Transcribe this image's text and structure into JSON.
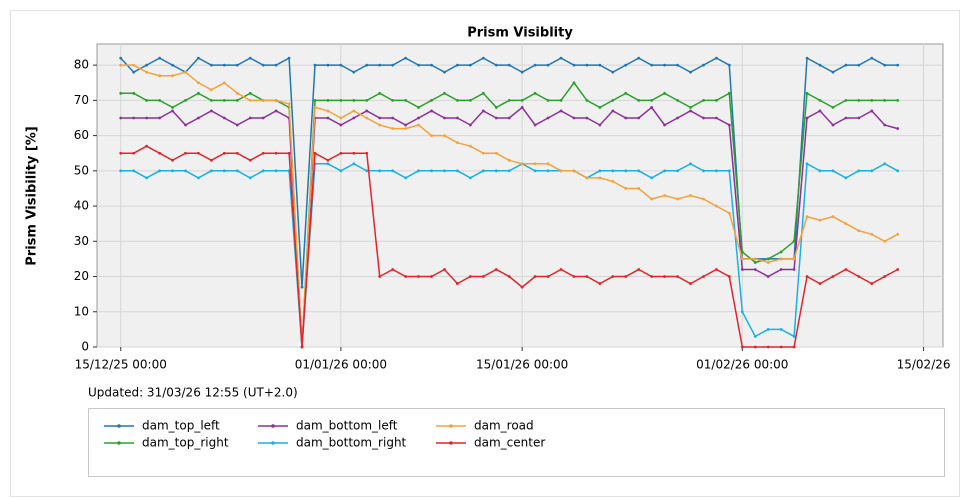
{
  "chart_data": {
    "type": "line",
    "title": "Prism Visiblity",
    "y_label": "Prism Visibility [%]",
    "updated": "Updated: 31/03/26 12:55 (UT+2.0)",
    "grid": true,
    "legend": "bottom",
    "x": [
      "2025-12-15T00:00",
      "2025-12-16T00:00",
      "2025-12-17T00:00",
      "2025-12-18T00:00",
      "2025-12-19T00:00",
      "2025-12-20T00:00",
      "2025-12-21T00:00",
      "2025-12-22T00:00",
      "2025-12-23T00:00",
      "2025-12-24T00:00",
      "2025-12-25T00:00",
      "2025-12-26T00:00",
      "2025-12-27T00:00",
      "2025-12-28T00:00",
      "2025-12-29T00:00",
      "2025-12-30T00:00",
      "2025-12-31T00:00",
      "2026-01-01T00:00",
      "2026-01-02T00:00",
      "2026-01-03T00:00",
      "2026-01-04T00:00",
      "2026-01-05T00:00",
      "2026-01-06T00:00",
      "2026-01-07T00:00",
      "2026-01-08T00:00",
      "2026-01-09T00:00",
      "2026-01-10T00:00",
      "2026-01-11T00:00",
      "2026-01-12T00:00",
      "2026-01-13T00:00",
      "2026-01-14T00:00",
      "2026-01-15T00:00",
      "2026-01-16T00:00",
      "2026-01-17T00:00",
      "2026-01-18T00:00",
      "2026-01-19T00:00",
      "2026-01-20T00:00",
      "2026-01-21T00:00",
      "2026-01-22T00:00",
      "2026-01-23T00:00",
      "2026-01-24T00:00",
      "2026-01-25T00:00",
      "2026-01-26T00:00",
      "2026-01-27T00:00",
      "2026-01-28T00:00",
      "2026-01-29T00:00",
      "2026-01-30T00:00",
      "2026-01-31T00:00",
      "2026-02-01T00:00",
      "2026-02-02T00:00",
      "2026-02-03T00:00",
      "2026-02-04T00:00",
      "2026-02-05T00:00",
      "2026-02-06T00:00",
      "2026-02-07T00:00",
      "2026-02-08T00:00",
      "2026-02-09T00:00",
      "2026-02-10T00:00",
      "2026-02-11T00:00",
      "2026-02-12T00:00",
      "2026-02-13T00:00"
    ],
    "xlim": [
      "2025-12-13T04:00",
      "2026-02-16T12:00"
    ],
    "xticks": [
      {
        "value": "2025-12-15T00:00",
        "label": "15/12/25 00:00"
      },
      {
        "value": "2026-01-01T00:00",
        "label": "01/01/26 00:00"
      },
      {
        "value": "2026-01-15T00:00",
        "label": "15/01/26 00:00"
      },
      {
        "value": "2026-02-01T00:00",
        "label": "01/02/26 00:00"
      },
      {
        "value": "2026-02-15T00:00",
        "label": "15/02/26"
      }
    ],
    "ylim": [
      0,
      86
    ],
    "yticks": [
      0,
      10,
      20,
      30,
      40,
      50,
      60,
      70,
      80
    ],
    "series": [
      {
        "name": "dam_top_left",
        "color": "#1f77b4",
        "values": [
          82,
          78,
          80,
          82,
          80,
          78,
          82,
          80,
          80,
          80,
          82,
          80,
          80,
          82,
          17,
          80,
          80,
          80,
          78,
          80,
          80,
          80,
          82,
          80,
          80,
          78,
          80,
          80,
          82,
          80,
          80,
          78,
          80,
          80,
          82,
          80,
          80,
          80,
          78,
          80,
          82,
          80,
          80,
          80,
          78,
          80,
          82,
          80,
          25,
          25,
          25,
          25,
          25,
          82,
          80,
          78,
          80,
          80,
          82,
          80,
          80
        ]
      },
      {
        "name": "dam_top_right",
        "color": "#2ca02c",
        "values": [
          72,
          72,
          70,
          70,
          68,
          70,
          72,
          70,
          70,
          70,
          72,
          70,
          70,
          68,
          0,
          70,
          70,
          70,
          70,
          70,
          72,
          70,
          70,
          68,
          70,
          72,
          70,
          70,
          72,
          68,
          70,
          70,
          72,
          70,
          70,
          75,
          70,
          68,
          70,
          72,
          70,
          70,
          72,
          70,
          68,
          70,
          70,
          72,
          27,
          24,
          25,
          27,
          30,
          72,
          70,
          68,
          70,
          70,
          70,
          70,
          70
        ]
      },
      {
        "name": "dam_bottom_left",
        "color": "#8e2f9c",
        "values": [
          65,
          65,
          65,
          65,
          67,
          63,
          65,
          67,
          65,
          63,
          65,
          65,
          67,
          65,
          0,
          65,
          65,
          63,
          65,
          67,
          65,
          65,
          63,
          65,
          67,
          65,
          65,
          63,
          67,
          65,
          65,
          68,
          63,
          65,
          67,
          65,
          65,
          63,
          67,
          65,
          65,
          68,
          63,
          65,
          67,
          65,
          65,
          63,
          22,
          22,
          20,
          22,
          22,
          65,
          67,
          63,
          65,
          65,
          67,
          63,
          62
        ]
      },
      {
        "name": "dam_bottom_right",
        "color": "#19b0e6",
        "values": [
          50,
          50,
          48,
          50,
          50,
          50,
          48,
          50,
          50,
          50,
          48,
          50,
          50,
          50,
          0,
          52,
          52,
          50,
          52,
          50,
          50,
          50,
          48,
          50,
          50,
          50,
          50,
          48,
          50,
          50,
          50,
          52,
          50,
          50,
          50,
          50,
          48,
          50,
          50,
          50,
          50,
          48,
          50,
          50,
          52,
          50,
          50,
          50,
          10,
          3,
          5,
          5,
          3,
          52,
          50,
          50,
          48,
          50,
          50,
          52,
          50
        ]
      },
      {
        "name": "dam_road",
        "color": "#f7a13a",
        "values": [
          80,
          80,
          78,
          77,
          77,
          78,
          75,
          73,
          75,
          72,
          70,
          70,
          70,
          69,
          0,
          68,
          67,
          65,
          67,
          65,
          63,
          62,
          62,
          63,
          60,
          60,
          58,
          57,
          55,
          55,
          53,
          52,
          52,
          52,
          50,
          50,
          48,
          48,
          47,
          45,
          45,
          42,
          43,
          42,
          43,
          42,
          40,
          38,
          25,
          25,
          24,
          25,
          25,
          37,
          36,
          37,
          35,
          33,
          32,
          30,
          32
        ]
      },
      {
        "name": "dam_center",
        "color": "#e3242b",
        "values": [
          55,
          55,
          57,
          55,
          53,
          55,
          55,
          53,
          55,
          55,
          53,
          55,
          55,
          55,
          0,
          55,
          53,
          55,
          55,
          55,
          20,
          22,
          20,
          20,
          20,
          22,
          18,
          20,
          20,
          22,
          20,
          17,
          20,
          20,
          22,
          20,
          20,
          18,
          20,
          20,
          22,
          20,
          20,
          20,
          18,
          20,
          22,
          20,
          0,
          0,
          0,
          0,
          0,
          20,
          18,
          20,
          22,
          20,
          18,
          20,
          22
        ]
      }
    ]
  }
}
